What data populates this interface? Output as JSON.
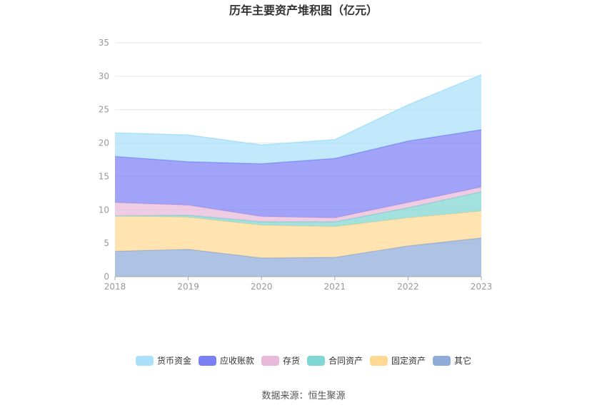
{
  "chart_data": {
    "type": "area",
    "title": "历年主要资产堆积图（亿元）",
    "x": [
      "2018",
      "2019",
      "2020",
      "2021",
      "2022",
      "2023"
    ],
    "ylim": [
      0,
      35
    ],
    "yticks": [
      0,
      5,
      10,
      15,
      20,
      25,
      30,
      35
    ],
    "stacked": true,
    "grid": true,
    "legend_position": "bottom",
    "series": [
      {
        "name": "其它",
        "color": "#8fabd9",
        "values": [
          3.8,
          4.1,
          2.8,
          2.9,
          4.6,
          5.8
        ]
      },
      {
        "name": "固定资产",
        "color": "#ffd994",
        "values": [
          5.3,
          4.8,
          4.9,
          4.6,
          4.2,
          4.0
        ]
      },
      {
        "name": "合同资产",
        "color": "#7fd6d2",
        "values": [
          0.0,
          0.3,
          0.5,
          0.7,
          1.5,
          2.9
        ]
      },
      {
        "name": "存货",
        "color": "#e8b9d9",
        "values": [
          2.0,
          1.5,
          0.8,
          0.6,
          0.8,
          0.7
        ]
      },
      {
        "name": "应收账款",
        "color": "#7b7ff4",
        "values": [
          6.9,
          6.5,
          7.9,
          8.9,
          9.2,
          8.6
        ]
      },
      {
        "name": "货币资金",
        "color": "#a9e1fa",
        "values": [
          3.5,
          4.0,
          2.8,
          2.8,
          5.4,
          8.2
        ]
      }
    ]
  },
  "legend_order": [
    "货币资金",
    "应收账款",
    "存货",
    "合同资产",
    "固定资产",
    "其它"
  ],
  "source_text": "数据来源：恒生聚源"
}
